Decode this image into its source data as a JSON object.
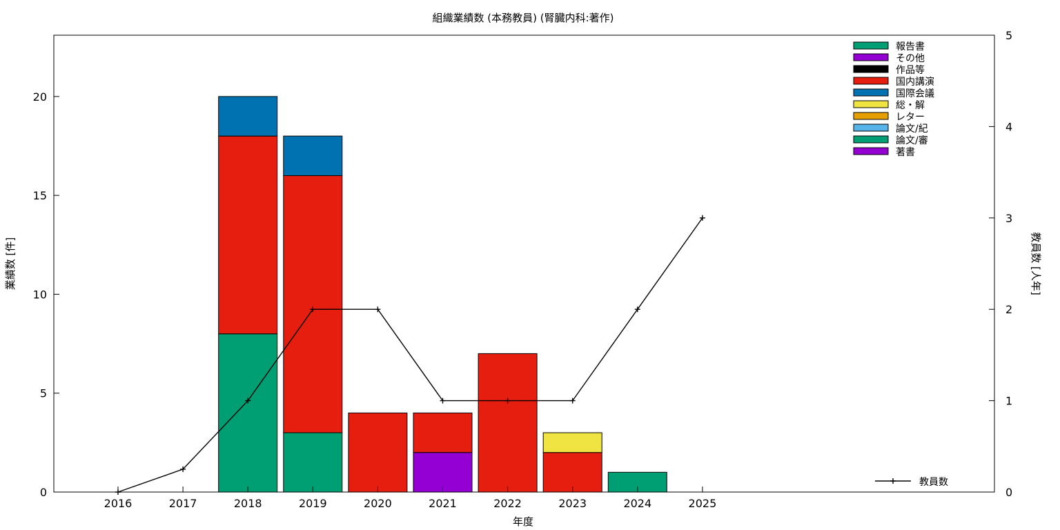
{
  "chart_data": {
    "type": "bar",
    "stacked": true,
    "title": "組織業績数 (本務教員) (腎臓内科:著作)",
    "xlabel": "年度",
    "ylabel": "業績数 [件]",
    "y2label": "教員数 [人年]",
    "categories": [
      "2016",
      "2017",
      "2018",
      "2019",
      "2020",
      "2021",
      "2022",
      "2023",
      "2024",
      "2025"
    ],
    "ylim": [
      0,
      23.1
    ],
    "yticks": [
      0,
      5,
      10,
      15,
      20
    ],
    "y2lim": [
      0,
      5
    ],
    "y2ticks": [
      0,
      1,
      2,
      3,
      4,
      5
    ],
    "grid": false,
    "legend_position": "top-right",
    "series": [
      {
        "name": "著書",
        "color": "#9400d3",
        "values": [
          0,
          0,
          0,
          0,
          0,
          0,
          0,
          0,
          0,
          0
        ]
      },
      {
        "name": "論文/審",
        "color": "#009e73",
        "values": [
          0,
          0,
          0,
          0,
          0,
          0,
          0,
          0,
          0,
          0
        ]
      },
      {
        "name": "論文/紀",
        "color": "#56b4e9",
        "values": [
          0,
          0,
          0,
          0,
          0,
          0,
          0,
          0,
          0,
          0
        ]
      },
      {
        "name": "レター",
        "color": "#e69f00",
        "values": [
          0,
          0,
          0,
          0,
          0,
          0,
          0,
          0,
          0,
          0
        ]
      },
      {
        "name": "総・解",
        "color": "#f0e442",
        "values": [
          0,
          0,
          0,
          0,
          0,
          0,
          0,
          1,
          0,
          0
        ]
      },
      {
        "name": "国際会議",
        "color": "#0072b2",
        "values": [
          0,
          0,
          2,
          2,
          0,
          0,
          0,
          0,
          0,
          0
        ]
      },
      {
        "name": "国内講演",
        "color": "#e51e10",
        "values": [
          0,
          0,
          10,
          13,
          4,
          2,
          7,
          2,
          0,
          0
        ]
      },
      {
        "name": "作品等",
        "color": "#000000",
        "values": [
          0,
          0,
          0,
          0,
          0,
          0,
          0,
          0,
          0,
          0
        ]
      },
      {
        "name": "その他",
        "color": "#9400d3",
        "values": [
          0,
          0,
          0,
          0,
          0,
          2,
          0,
          0,
          0,
          0
        ]
      },
      {
        "name": "報告書",
        "color": "#009e73",
        "values": [
          0,
          0,
          8,
          3,
          0,
          0,
          0,
          0,
          1,
          0
        ]
      }
    ],
    "stack_order": [
      "報告書",
      "その他",
      "作品等",
      "国内講演",
      "国際会議",
      "総・解",
      "レター",
      "論文/紀",
      "論文/審",
      "著書"
    ],
    "line_series": {
      "name": "教員数",
      "axis": "y2",
      "color": "#000000",
      "values": [
        0,
        0.25,
        1,
        2,
        2,
        1,
        1,
        1,
        2,
        3
      ]
    }
  }
}
